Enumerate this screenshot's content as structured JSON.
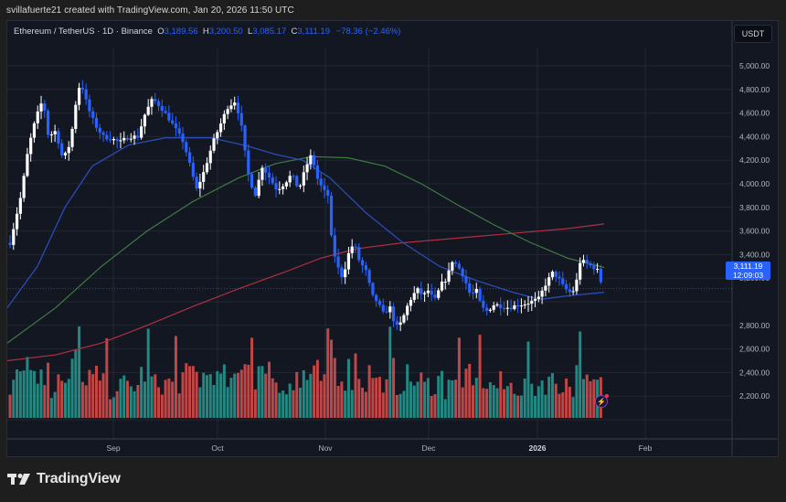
{
  "caption": "svillafuerte21 created with TradingView.com, Jan 20, 2026 11:50 UTC",
  "legend": {
    "symbol": "Ethereum / TetherUS · 1D · Binance",
    "open_label": "O",
    "open": "3,189.56",
    "high_label": "H",
    "high": "3,200.50",
    "low_label": "L",
    "low": "3,085.17",
    "close_label": "C",
    "close": "3,111.19",
    "change": "−78.36 (−2.46%)"
  },
  "currency_button": "USDT",
  "price_tag": {
    "price": "3,111.19",
    "countdown": "12:09:03"
  },
  "brand": "TradingView",
  "colors": {
    "background": "#131722",
    "up_candle": "#ffffff",
    "down_candle": "#2962ff",
    "volume_up": "#26a69a",
    "volume_down": "#ef5350",
    "ma_blue": "#2b4bb5",
    "ma_green": "#3f7d3f",
    "ma_red": "#b03040",
    "accent": "#2962ff"
  },
  "chart_data": {
    "type": "candlestick",
    "title": "Ethereum / TetherUS · 1D · Binance",
    "ylabel": "USDT",
    "ylim": [
      2000,
      5100
    ],
    "yticks": [
      "5,000.00",
      "4,800.00",
      "4,600.00",
      "4,400.00",
      "4,200.00",
      "4,000.00",
      "3,800.00",
      "3,600.00",
      "3,400.00",
      "3,200.00",
      "2,800.00",
      "2,600.00",
      "2,400.00",
      "2,200.00"
    ],
    "xticks": [
      "Sep",
      "Oct",
      "Nov",
      "Dec",
      "2026",
      "Feb"
    ],
    "grid": true,
    "last": {
      "open": 3189.56,
      "high": 3200.5,
      "low": 3085.17,
      "close": 3111.19,
      "change": -78.36,
      "change_pct": -2.46
    },
    "price_series_approx": [
      {
        "period": "early Aug",
        "price": 3500
      },
      {
        "period": "mid Aug",
        "price": 4700
      },
      {
        "period": "late Aug",
        "price": 4900
      },
      {
        "period": "early Sep",
        "price": 4400
      },
      {
        "period": "mid Sep",
        "price": 4500
      },
      {
        "period": "late Sep",
        "price": 4000
      },
      {
        "period": "early Oct",
        "price": 4650
      },
      {
        "period": "mid Oct",
        "price": 3900
      },
      {
        "period": "late Oct",
        "price": 4100
      },
      {
        "period": "early Nov",
        "price": 3400
      },
      {
        "period": "mid Nov",
        "price": 3150
      },
      {
        "period": "late Nov",
        "price": 2800
      },
      {
        "period": "early Dec",
        "price": 3200
      },
      {
        "period": "mid Dec",
        "price": 3000
      },
      {
        "period": "late Dec",
        "price": 2950
      },
      {
        "period": "early Jan",
        "price": 3200
      },
      {
        "period": "mid Jan",
        "price": 3300
      },
      {
        "period": "Jan 20",
        "price": 3111.19
      }
    ],
    "moving_averages": [
      {
        "name": "MA (blue, short)",
        "color": "#2b4bb5",
        "approx": [
          2950,
          4100,
          4400,
          4380,
          4100,
          3500,
          3200,
          3000,
          3080
        ]
      },
      {
        "name": "MA (green, mid)",
        "color": "#3f7d3f",
        "approx": [
          2700,
          3400,
          3900,
          4200,
          4200,
          3900,
          3500,
          3280
        ]
      },
      {
        "name": "MA (red, long)",
        "color": "#b03040",
        "approx": [
          2500,
          2600,
          2900,
          3200,
          3450,
          3550,
          3620,
          3660
        ]
      }
    ]
  }
}
